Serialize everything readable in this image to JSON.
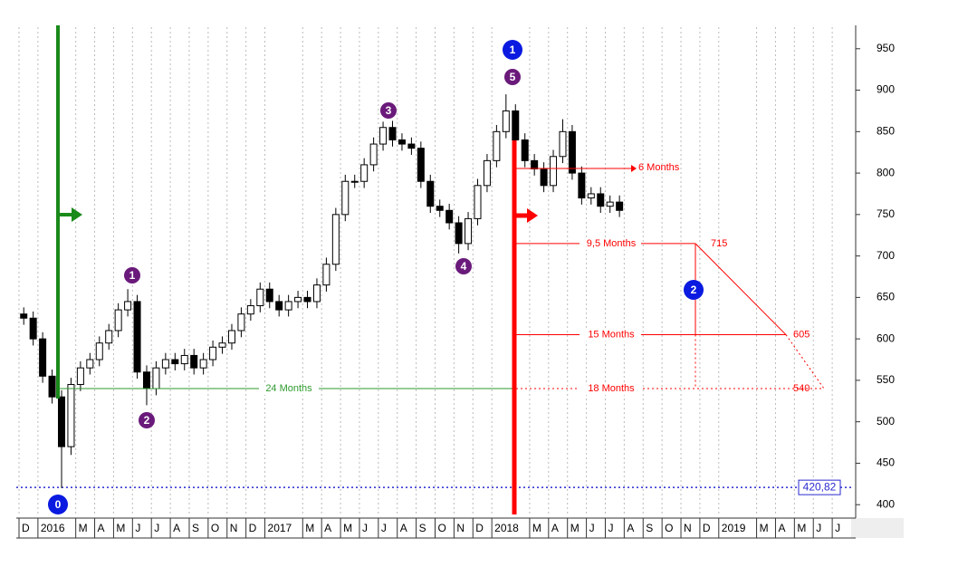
{
  "chart_data": {
    "type": "candlestick",
    "candles": {
      "x": [
        0.25,
        0.75,
        1.25,
        1.75,
        2.25,
        2.75,
        3.25,
        3.75,
        4.25,
        4.75,
        5.25,
        5.75,
        6.25,
        6.75,
        7.25,
        7.75,
        8.25,
        8.75,
        9.25,
        9.75,
        10.25,
        10.75,
        11.25,
        11.75,
        12.25,
        12.75,
        13.25,
        13.75,
        14.25,
        14.75,
        15.25,
        15.75,
        16.25,
        16.75,
        17.25,
        17.75,
        18.25,
        18.75,
        19.25,
        19.75,
        20.25,
        20.75,
        21.25,
        21.75,
        22.25,
        22.75,
        23.25,
        23.75,
        24.25,
        24.75,
        25.25,
        25.75,
        26.25,
        26.75,
        27.25,
        27.75,
        28.25,
        28.75,
        29.25,
        29.75,
        30.25,
        30.75,
        31.25,
        31.75
      ],
      "open": [
        630,
        625,
        600,
        555,
        530,
        470,
        545,
        565,
        575,
        595,
        610,
        635,
        645,
        560,
        540,
        565,
        575,
        570,
        580,
        565,
        575,
        590,
        595,
        610,
        630,
        640,
        660,
        645,
        635,
        645,
        650,
        645,
        665,
        690,
        750,
        790,
        790,
        810,
        835,
        855,
        840,
        835,
        830,
        790,
        760,
        755,
        740,
        715,
        745,
        785,
        815,
        850,
        875,
        840,
        815,
        805,
        785,
        820,
        850,
        800,
        770,
        775,
        760,
        765
      ],
      "high": [
        638,
        633,
        608,
        563,
        538,
        553,
        573,
        583,
        603,
        618,
        643,
        660,
        653,
        568,
        573,
        583,
        583,
        588,
        588,
        583,
        598,
        603,
        618,
        638,
        648,
        668,
        668,
        653,
        653,
        658,
        658,
        673,
        698,
        758,
        798,
        798,
        818,
        843,
        862,
        863,
        848,
        843,
        838,
        798,
        768,
        763,
        748,
        753,
        793,
        823,
        858,
        895,
        883,
        848,
        823,
        813,
        828,
        865,
        858,
        808,
        783,
        783,
        773,
        773
      ],
      "low": [
        617,
        592,
        547,
        522,
        420,
        460,
        537,
        557,
        567,
        587,
        602,
        627,
        552,
        520,
        532,
        557,
        562,
        562,
        557,
        557,
        567,
        582,
        587,
        602,
        622,
        632,
        637,
        627,
        627,
        637,
        637,
        637,
        657,
        682,
        742,
        782,
        782,
        802,
        827,
        832,
        827,
        822,
        782,
        752,
        747,
        732,
        703,
        707,
        737,
        777,
        807,
        842,
        832,
        807,
        797,
        777,
        777,
        812,
        792,
        762,
        762,
        752,
        752,
        747
      ],
      "close": [
        625,
        600,
        555,
        530,
        470,
        545,
        565,
        575,
        595,
        610,
        635,
        645,
        560,
        540,
        565,
        575,
        570,
        580,
        565,
        575,
        590,
        595,
        610,
        630,
        640,
        660,
        645,
        635,
        645,
        650,
        645,
        665,
        690,
        750,
        790,
        790,
        810,
        835,
        855,
        840,
        835,
        830,
        790,
        760,
        755,
        740,
        715,
        745,
        785,
        815,
        850,
        875,
        840,
        815,
        805,
        785,
        820,
        850,
        800,
        770,
        775,
        760,
        765,
        755
      ]
    },
    "xlim": [
      0,
      44
    ],
    "xticks": [
      {
        "value": 0,
        "label": "D"
      },
      {
        "value": 1,
        "label": "2016"
      },
      {
        "value": 3,
        "label": "M"
      },
      {
        "value": 4,
        "label": "A"
      },
      {
        "value": 5,
        "label": "M"
      },
      {
        "value": 6,
        "label": "J"
      },
      {
        "value": 7,
        "label": "J"
      },
      {
        "value": 8,
        "label": "A"
      },
      {
        "value": 9,
        "label": "S"
      },
      {
        "value": 10,
        "label": "O"
      },
      {
        "value": 11,
        "label": "N"
      },
      {
        "value": 12,
        "label": "D"
      },
      {
        "value": 13,
        "label": "2017"
      },
      {
        "value": 15,
        "label": "M"
      },
      {
        "value": 16,
        "label": "A"
      },
      {
        "value": 17,
        "label": "M"
      },
      {
        "value": 18,
        "label": "J"
      },
      {
        "value": 19,
        "label": "J"
      },
      {
        "value": 20,
        "label": "A"
      },
      {
        "value": 21,
        "label": "S"
      },
      {
        "value": 22,
        "label": "O"
      },
      {
        "value": 23,
        "label": "N"
      },
      {
        "value": 24,
        "label": "D"
      },
      {
        "value": 25,
        "label": "2018"
      },
      {
        "value": 27,
        "label": "M"
      },
      {
        "value": 28,
        "label": "A"
      },
      {
        "value": 29,
        "label": "M"
      },
      {
        "value": 30,
        "label": "J"
      },
      {
        "value": 31,
        "label": "J"
      },
      {
        "value": 32,
        "label": "A"
      },
      {
        "value": 33,
        "label": "S"
      },
      {
        "value": 34,
        "label": "O"
      },
      {
        "value": 35,
        "label": "N"
      },
      {
        "value": 36,
        "label": "D"
      },
      {
        "value": 37,
        "label": "2019"
      },
      {
        "value": 39,
        "label": "M"
      },
      {
        "value": 40,
        "label": "A"
      },
      {
        "value": 41,
        "label": "M"
      },
      {
        "value": 42,
        "label": "J"
      },
      {
        "value": 43,
        "label": "J"
      }
    ],
    "ylim": [
      386,
      976
    ],
    "yticks": [
      400,
      450,
      500,
      550,
      600,
      650,
      700,
      750,
      800,
      850,
      900,
      950
    ],
    "grid": true,
    "annotations": {
      "wave_labels": [
        "1",
        "2",
        "3",
        "4",
        "5"
      ],
      "cycle_labels": [
        "0",
        "1",
        "2"
      ],
      "projections": [
        {
          "label": "6 Months"
        },
        {
          "label": "9,5 Months",
          "level": 715
        },
        {
          "label": "15 Months",
          "level": 605
        },
        {
          "label": "18 Months",
          "level": 540
        }
      ],
      "cycle_span": "24 Months",
      "last_price": {
        "value": 420.82,
        "label": "420,82"
      }
    }
  }
}
